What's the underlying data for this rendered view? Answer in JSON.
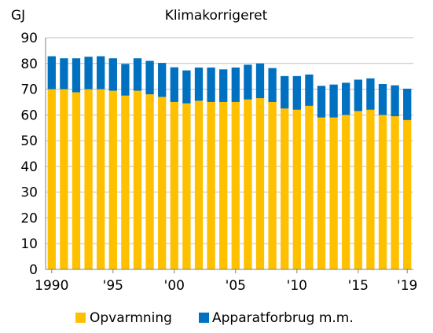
{
  "chart_data": {
    "type": "bar",
    "stacked": true,
    "title": "Klimakorrigeret",
    "ylabel": "GJ",
    "ylim": [
      0,
      90
    ],
    "yticks": [
      0,
      10,
      20,
      30,
      40,
      50,
      60,
      70,
      80,
      90
    ],
    "grid": true,
    "legend_position": "bottom",
    "years": [
      1990,
      1991,
      1992,
      1993,
      1994,
      1995,
      1996,
      1997,
      1998,
      1999,
      2000,
      2001,
      2002,
      2003,
      2004,
      2005,
      2006,
      2007,
      2008,
      2009,
      2010,
      2011,
      2012,
      2013,
      2014,
      2015,
      2016,
      2017,
      2018,
      2019
    ],
    "xtick_labels": [
      {
        "year": 1990,
        "label": "1990"
      },
      {
        "year": 1995,
        "label": "'95"
      },
      {
        "year": 2000,
        "label": "'00"
      },
      {
        "year": 2005,
        "label": "'05"
      },
      {
        "year": 2010,
        "label": "'10"
      },
      {
        "year": 2015,
        "label": "'15"
      },
      {
        "year": 2019,
        "label": "'19"
      }
    ],
    "series": [
      {
        "name": "Opvarmning",
        "color": "#ffc000",
        "values": [
          70,
          70,
          68.8,
          70,
          70,
          69.4,
          67.5,
          69.4,
          68,
          67,
          65,
          64.5,
          65.5,
          65,
          65,
          65,
          66,
          66.5,
          65,
          62.5,
          62,
          63.5,
          59,
          59,
          60,
          61.5,
          62,
          60,
          59.5,
          58
        ]
      },
      {
        "name": "Apparatforbrug m.m.",
        "color": "#0070c0",
        "values": [
          12.8,
          12,
          13.2,
          12.6,
          12.8,
          12.6,
          12.3,
          12.6,
          13,
          13.2,
          13.5,
          12.8,
          12.9,
          13.4,
          12.7,
          13.4,
          13.5,
          13.5,
          13.2,
          12.6,
          13.1,
          12.2,
          12.3,
          12.8,
          12.5,
          12.2,
          12.2,
          12,
          12,
          12.2
        ]
      }
    ]
  }
}
